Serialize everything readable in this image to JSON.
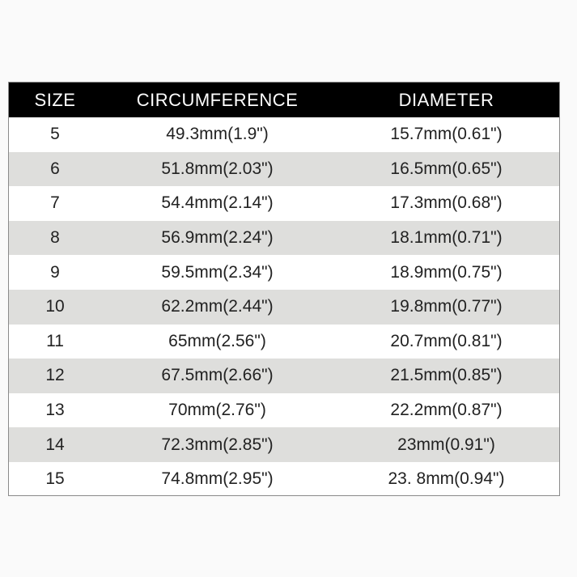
{
  "headers": [
    "SIZE",
    "CIRCUMFERENCE",
    "DIAMETER"
  ],
  "rows": [
    [
      "5",
      "49.3mm(1.9\")",
      "15.7mm(0.61\")"
    ],
    [
      "6",
      "51.8mm(2.03\")",
      "16.5mm(0.65\")"
    ],
    [
      "7",
      "54.4mm(2.14\")",
      "17.3mm(0.68\")"
    ],
    [
      "8",
      "56.9mm(2.24\")",
      "18.1mm(0.71\")"
    ],
    [
      "9",
      "59.5mm(2.34\")",
      "18.9mm(0.75\")"
    ],
    [
      "10",
      "62.2mm(2.44\")",
      "19.8mm(0.77\")"
    ],
    [
      "11",
      "65mm(2.56\")",
      "20.7mm(0.81\")"
    ],
    [
      "12",
      "67.5mm(2.66\")",
      "21.5mm(0.85\")"
    ],
    [
      "13",
      "70mm(2.76\")",
      "22.2mm(0.87\")"
    ],
    [
      "14",
      "72.3mm(2.85\")",
      "23mm(0.91\")"
    ],
    [
      "15",
      "74.8mm(2.95\")",
      "23. 8mm(0.94\")"
    ]
  ],
  "colors": {
    "header_bg": "#000000",
    "header_text": "#ffffff",
    "alt_row": "#dededc"
  }
}
